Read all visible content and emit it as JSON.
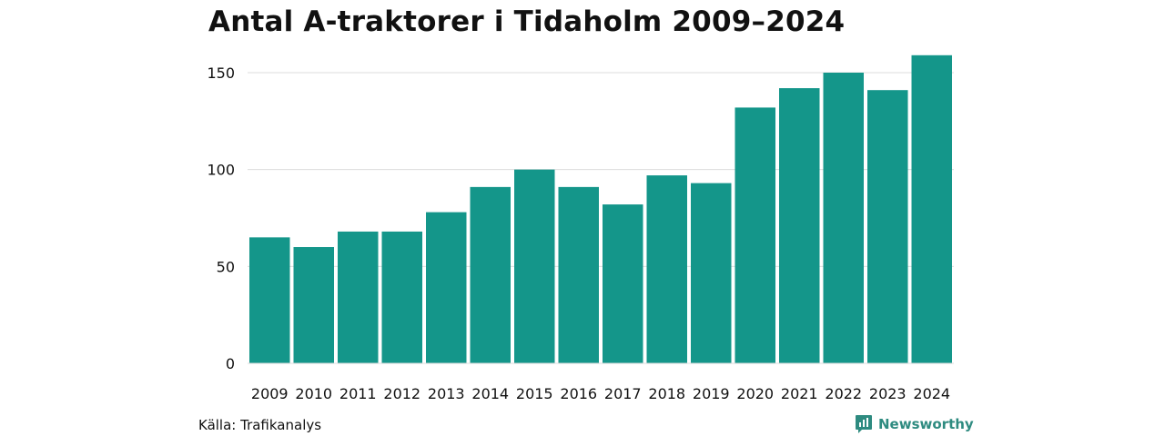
{
  "chart_data": {
    "type": "bar",
    "title": "Antal A-traktorer i Tidaholm 2009–2024",
    "categories": [
      "2009",
      "2010",
      "2011",
      "2012",
      "2013",
      "2014",
      "2015",
      "2016",
      "2017",
      "2018",
      "2019",
      "2020",
      "2021",
      "2022",
      "2023",
      "2024"
    ],
    "values": [
      65,
      60,
      68,
      68,
      78,
      91,
      100,
      91,
      82,
      97,
      93,
      132,
      142,
      150,
      141,
      159
    ],
    "xlabel": "",
    "ylabel": "",
    "ylim": [
      0,
      165
    ],
    "yticks": [
      0,
      50,
      100,
      150
    ],
    "ytick_labels": [
      "0",
      "50",
      "100",
      "150"
    ],
    "grid": true,
    "bar_color": "#14968a",
    "grid_color": "#dcdcdc"
  },
  "footer": {
    "source": "Källa: Trafikanalys",
    "brand": "Newsworthy",
    "brand_icon": "newsworthy-logo-icon",
    "brand_color": "#2e8b80"
  }
}
